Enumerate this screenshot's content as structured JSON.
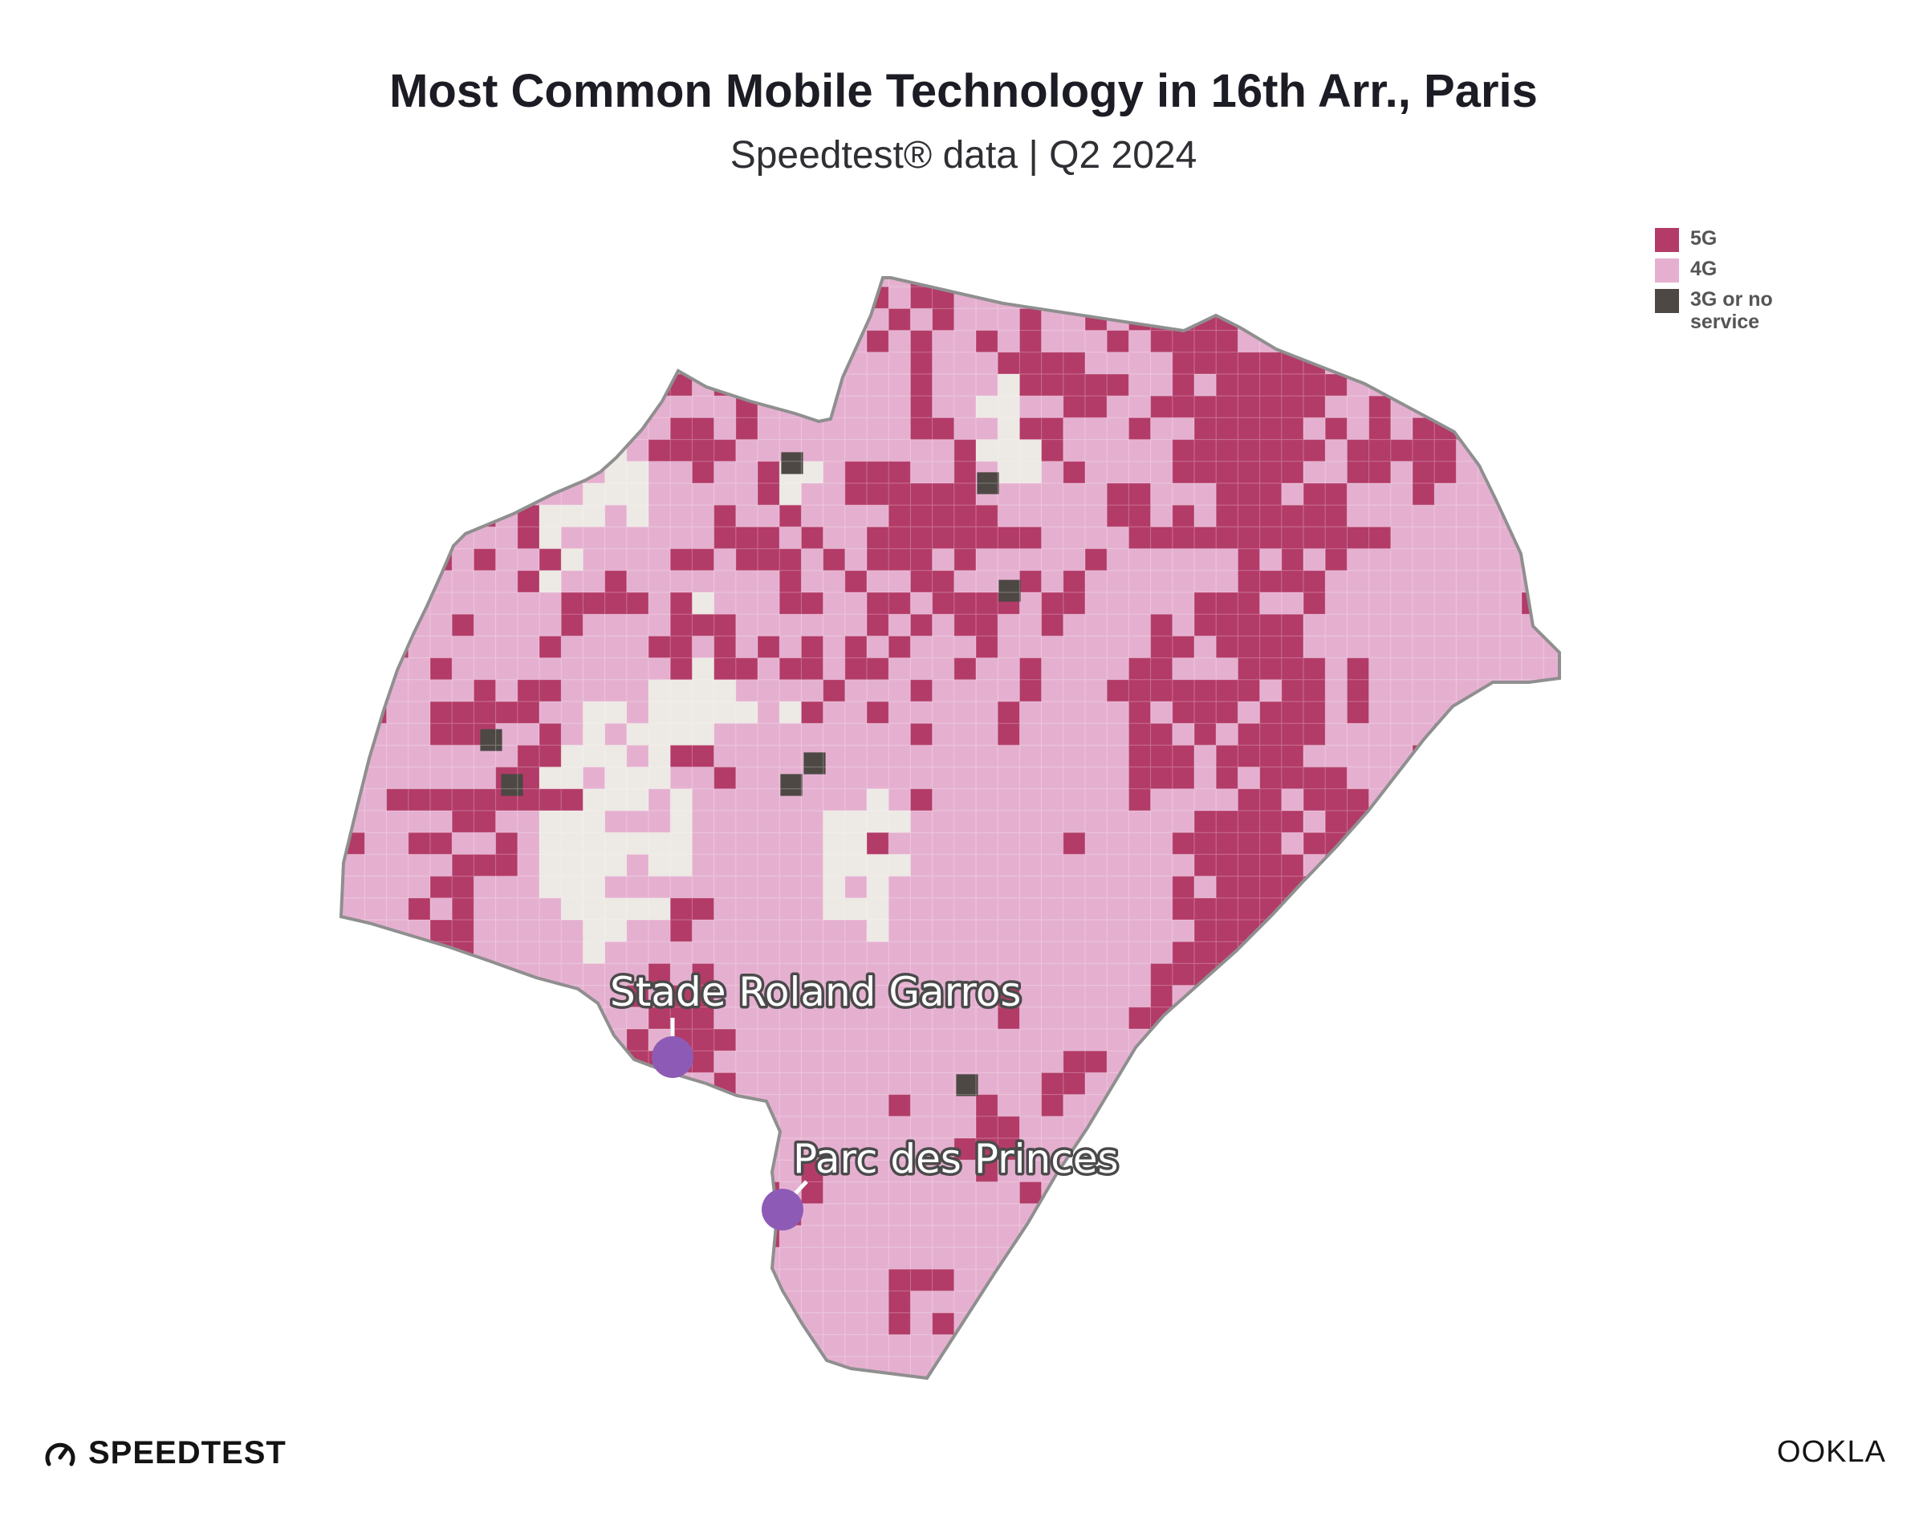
{
  "header": {
    "title": "Most Common Mobile Technology in 16th Arr., Paris",
    "subtitle": "Speedtest® data | Q2 2024"
  },
  "legend": {
    "items": [
      {
        "label": "5G",
        "color": "#b33b68"
      },
      {
        "label": "4G",
        "color": "#e5b0d0"
      },
      {
        "label": "3G or no service",
        "color": "#4d4844"
      }
    ]
  },
  "map": {
    "colors": {
      "fiveg": "#b33b68",
      "fourg": "#e5b0d0",
      "nodata": "#ede9e4",
      "nosvc": "#4d4844",
      "border": "#8f8f8f",
      "marker": "#8d5bb6"
    },
    "landmarks": [
      {
        "name": "Stade Roland Garros"
      },
      {
        "name": "Parc des Princes"
      }
    ]
  },
  "footer": {
    "speedtest_brand": "SPEEDTEST",
    "ookla_brand": "OOKLA"
  }
}
